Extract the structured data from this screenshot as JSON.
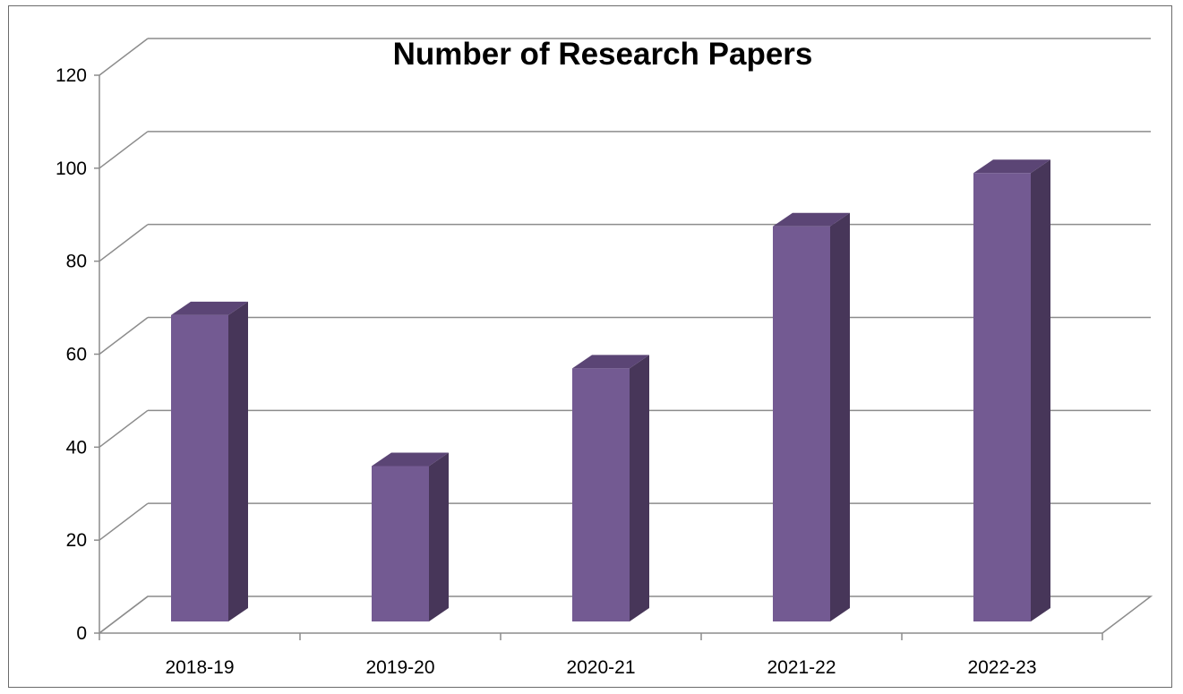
{
  "chart_data": {
    "type": "bar",
    "title": "Number of Research Papers",
    "xlabel": "",
    "ylabel": "",
    "categories": [
      "2018-19",
      "2019-20",
      "2020-21",
      "2021-22",
      "2022-23"
    ],
    "values": [
      69,
      35,
      57,
      89,
      101
    ],
    "ylim": [
      0,
      120
    ],
    "y_ticks": [
      0,
      20,
      40,
      60,
      80,
      100,
      120
    ],
    "grid": true,
    "style": "3d-column",
    "legend": "none",
    "colors": {
      "bar_front": "#735a92",
      "bar_side": "#473659",
      "bar_top": "#5b4575",
      "grid": "#8c8c8c",
      "axis": "#8c8c8c"
    }
  }
}
